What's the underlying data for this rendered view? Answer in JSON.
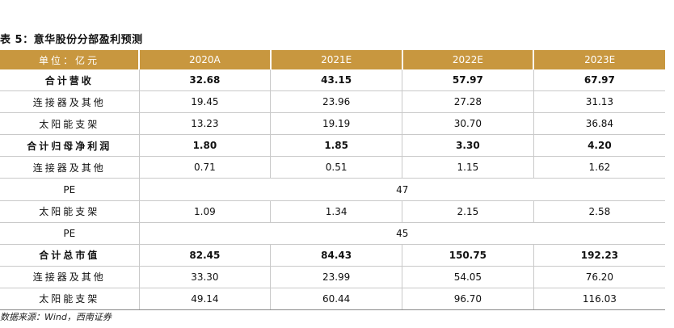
{
  "title": "表 5：意华股份分部盈利预测",
  "header": {
    "label": "单位：亿元",
    "years": [
      "2020A",
      "2021E",
      "2022E",
      "2023E"
    ]
  },
  "rows": [
    {
      "label": "合计营收",
      "values": [
        "32.68",
        "43.15",
        "57.97",
        "67.97"
      ],
      "bold": true
    },
    {
      "label": "连接器及其他",
      "values": [
        "19.45",
        "23.96",
        "27.28",
        "31.13"
      ],
      "bold": false
    },
    {
      "label": "太阳能支架",
      "values": [
        "13.23",
        "19.19",
        "30.70",
        "36.84"
      ],
      "bold": false
    },
    {
      "label": "合计归母净利润",
      "values": [
        "1.80",
        "1.85",
        "3.30",
        "4.20"
      ],
      "bold": true
    },
    {
      "label": "连接器及其他",
      "values": [
        "0.71",
        "0.51",
        "1.15",
        "1.62"
      ],
      "bold": false
    },
    {
      "label": "PE",
      "merged": "47"
    },
    {
      "label": "太阳能支架",
      "values": [
        "1.09",
        "1.34",
        "2.15",
        "2.58"
      ],
      "bold": false
    },
    {
      "label": "PE",
      "merged": "45"
    },
    {
      "label": "合计总市值",
      "values": [
        "82.45",
        "84.43",
        "150.75",
        "192.23"
      ],
      "bold": true
    },
    {
      "label": "连接器及其他",
      "values": [
        "33.30",
        "23.99",
        "54.05",
        "76.20"
      ],
      "bold": false
    },
    {
      "label": "太阳能支架",
      "values": [
        "49.14",
        "60.44",
        "96.70",
        "116.03"
      ],
      "bold": false
    }
  ],
  "source": "数据来源：Wind，西南证券"
}
